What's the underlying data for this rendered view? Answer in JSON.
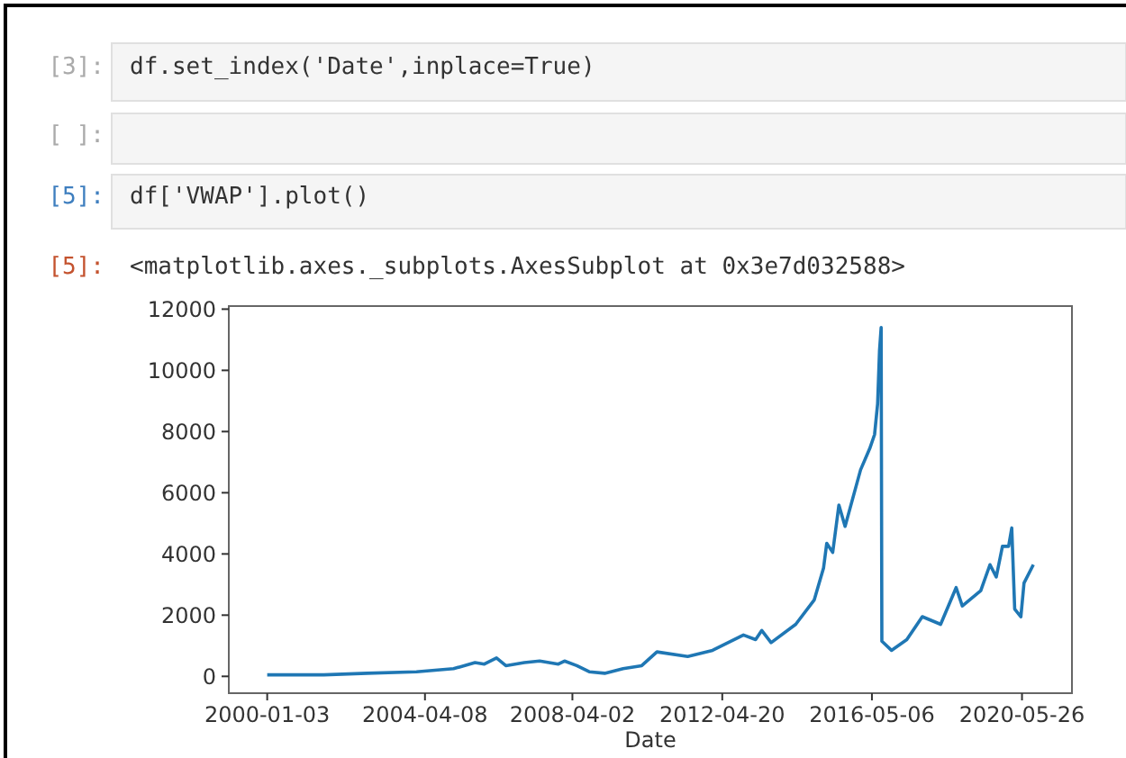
{
  "chart_data": {
    "type": "line",
    "xlabel": "Date",
    "annotations": [
      "[3]:",
      "df.set_index('Date',inplace=True)",
      "[ ]:",
      "[5]:",
      "df['VWAP'].plot()",
      "[5]:",
      "<matplotlib.axes._subplots.AxesSubplot at 0x3e7d032588>"
    ],
    "xlim": [
      "1998-12-20",
      "2021-10-01"
    ],
    "ylim": [
      -550,
      12100
    ],
    "xticks": [
      "2000-01-03",
      "2004-04-08",
      "2008-04-02",
      "2012-04-20",
      "2016-05-06",
      "2020-05-26"
    ],
    "yticks": [
      0,
      2000,
      4000,
      6000,
      8000,
      10000,
      12000
    ],
    "grid": false,
    "marker": "none",
    "line_style": "solid",
    "series": [
      {
        "color": "#1f77b4",
        "x": [
          "2000-01-03",
          "2001-07-15",
          "2002-09-15",
          "2004-01-15",
          "2005-01-15",
          "2005-08-15",
          "2005-11-15",
          "2006-03-15",
          "2006-06-15",
          "2006-12-15",
          "2007-05-15",
          "2007-11-15",
          "2008-01-15",
          "2008-05-15",
          "2008-09-15",
          "2009-02-15",
          "2009-08-15",
          "2010-02-15",
          "2010-07-15",
          "2011-05-15",
          "2012-01-15",
          "2012-11-15",
          "2013-03-15",
          "2013-05-15",
          "2013-08-15",
          "2014-04-15",
          "2014-10-15",
          "2015-01-15",
          "2015-02-15",
          "2015-04-15",
          "2015-06-15",
          "2015-08-15",
          "2016-01-15",
          "2016-04-15",
          "2016-06-01",
          "2016-07-01",
          "2016-07-20",
          "2016-08-05",
          "2016-08-12",
          "2016-11-15",
          "2017-04-15",
          "2017-09-15",
          "2018-03-15",
          "2018-08-15",
          "2018-10-15",
          "2019-04-15",
          "2019-07-15",
          "2019-09-15",
          "2019-11-15",
          "2020-01-15",
          "2020-02-15",
          "2020-03-15",
          "2020-05-15",
          "2020-06-15",
          "2020-09-15"
        ],
        "values": [
          50,
          50,
          100,
          150,
          250,
          450,
          400,
          600,
          350,
          450,
          500,
          400,
          500,
          350,
          150,
          100,
          250,
          350,
          800,
          650,
          850,
          1350,
          1200,
          1500,
          1100,
          1700,
          2500,
          3550,
          4350,
          4050,
          5600,
          4900,
          6750,
          7450,
          7900,
          8900,
          10650,
          11400,
          1150,
          850,
          1200,
          1950,
          1700,
          2900,
          2300,
          2800,
          3650,
          3250,
          4250,
          4250,
          4850,
          2200,
          1950,
          3050,
          3650
        ]
      }
    ]
  }
}
